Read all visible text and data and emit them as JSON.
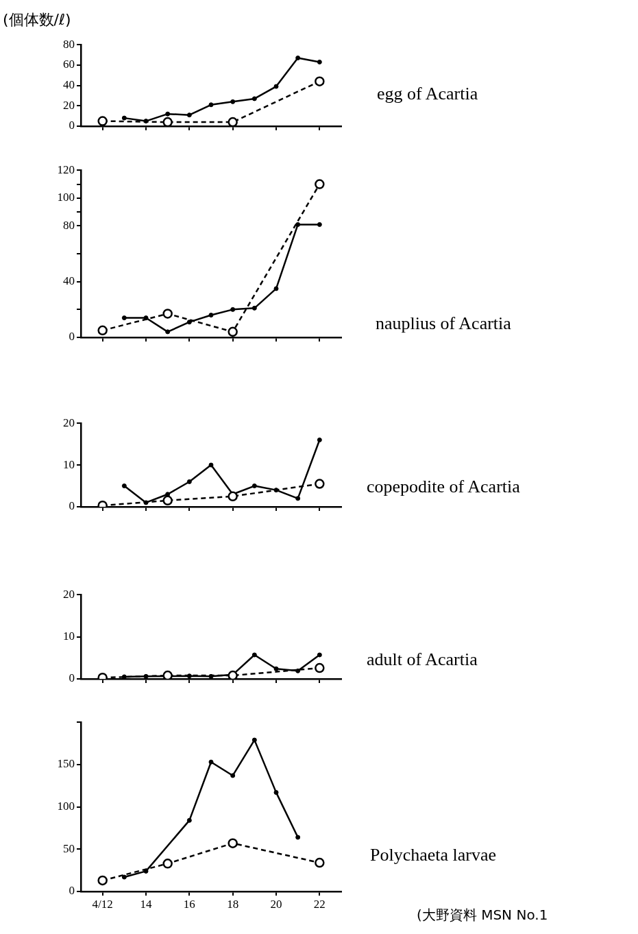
{
  "chart_data": [
    {
      "type": "line",
      "annotations": [
        "egg of Acartia"
      ],
      "ylabel": "(個体数/ℓ)",
      "marker": "circle",
      "grid": false,
      "legend": false,
      "tick_labels": "y",
      "xlim": [
        "--04-11",
        "--04-23"
      ],
      "xticks": [
        {
          "value": "--04-12",
          "label": null
        },
        {
          "value": "--04-14",
          "label": null
        },
        {
          "value": "--04-16",
          "label": null
        },
        {
          "value": "--04-18",
          "label": null
        },
        {
          "value": "--04-20",
          "label": null
        },
        {
          "value": "--04-22",
          "label": null
        }
      ],
      "ylim": [
        0,
        80
      ],
      "yticks": [
        0,
        20,
        40,
        60,
        80
      ],
      "series": [
        {
          "color": "#000000",
          "line_style": "solid",
          "x": [
            "--04-13",
            "--04-14",
            "--04-15",
            "--04-16",
            "--04-17",
            "--04-18",
            "--04-19",
            "--04-20",
            "--04-21",
            "--04-22"
          ],
          "values": [
            8,
            5,
            12,
            11,
            21,
            24,
            27,
            39,
            67,
            63
          ]
        },
        {
          "color": "#000000",
          "line_style": "dashed",
          "x": [
            "--04-12",
            "--04-15",
            "--04-18",
            "--04-22"
          ],
          "values": [
            5,
            4,
            4,
            44
          ]
        }
      ]
    },
    {
      "type": "line",
      "annotations": [
        "nauplius of Acartia"
      ],
      "marker": "circle",
      "grid": false,
      "legend": false,
      "tick_labels": "y",
      "xlim": [
        "--04-11",
        "--04-23"
      ],
      "xticks": [
        {
          "value": "--04-12",
          "label": null
        },
        {
          "value": "--04-14",
          "label": null
        },
        {
          "value": "--04-16",
          "label": null
        },
        {
          "value": "--04-18",
          "label": null
        },
        {
          "value": "--04-20",
          "label": null
        },
        {
          "value": "--04-22",
          "label": null
        }
      ],
      "ylim": [
        0,
        120
      ],
      "yticks": [
        0,
        {
          "value": 20,
          "label": null
        },
        40,
        {
          "value": 60,
          "label": null
        },
        80,
        {
          "value": 90,
          "label": null
        },
        100,
        {
          "value": 110,
          "label": null
        },
        120
      ],
      "series": [
        {
          "color": "#000000",
          "line_style": "solid",
          "x": [
            "--04-13",
            "--04-14",
            "--04-15",
            "--04-16",
            "--04-17",
            "--04-18",
            "--04-19",
            "--04-20",
            "--04-21",
            "--04-22"
          ],
          "values": [
            14,
            14,
            4,
            11,
            16,
            20,
            21,
            35,
            81,
            81
          ]
        },
        {
          "color": "#000000",
          "line_style": "dashed",
          "x": [
            "--04-12",
            "--04-15",
            "--04-18",
            "--04-22"
          ],
          "values": [
            5,
            17,
            4,
            110
          ]
        }
      ]
    },
    {
      "type": "line",
      "annotations": [
        "copepodite of Acartia"
      ],
      "marker": "circle",
      "grid": false,
      "legend": false,
      "tick_labels": "y",
      "xlim": [
        "--04-11",
        "--04-23"
      ],
      "xticks": [
        {
          "value": "--04-12",
          "label": null
        },
        {
          "value": "--04-14",
          "label": null
        },
        {
          "value": "--04-16",
          "label": null
        },
        {
          "value": "--04-18",
          "label": null
        },
        {
          "value": "--04-20",
          "label": null
        },
        {
          "value": "--04-22",
          "label": null
        }
      ],
      "ylim": [
        0,
        20
      ],
      "yticks": [
        0,
        10,
        20
      ],
      "series": [
        {
          "color": "#000000",
          "line_style": "solid",
          "x": [
            "--04-13",
            "--04-14",
            "--04-15",
            "--04-16",
            "--04-17",
            "--04-18",
            "--04-19",
            "--04-20",
            "--04-21",
            "--04-22"
          ],
          "values": [
            5,
            1,
            3,
            6,
            10,
            3,
            5,
            4,
            2,
            16
          ]
        },
        {
          "color": "#000000",
          "line_style": "dashed",
          "x": [
            "--04-12",
            "--04-15",
            "--04-18",
            "--04-22"
          ],
          "values": [
            0.3,
            1.5,
            2.5,
            5.5
          ]
        }
      ]
    },
    {
      "type": "line",
      "annotations": [
        "adult of Acartia"
      ],
      "marker": "circle",
      "grid": false,
      "legend": false,
      "tick_labels": "y",
      "xlim": [
        "--04-11",
        "--04-23"
      ],
      "xticks": [
        {
          "value": "--04-12",
          "label": null
        },
        {
          "value": "--04-14",
          "label": null
        },
        {
          "value": "--04-16",
          "label": null
        },
        {
          "value": "--04-18",
          "label": null
        },
        {
          "value": "--04-20",
          "label": null
        },
        {
          "value": "--04-22",
          "label": null
        }
      ],
      "ylim": [
        0,
        20
      ],
      "yticks": [
        0,
        10,
        20
      ],
      "series": [
        {
          "color": "#000000",
          "line_style": "solid",
          "x": [
            "--04-13",
            "--04-14",
            "--04-16",
            "--04-17",
            "--04-18",
            "--04-19",
            "--04-20",
            "--04-21",
            "--04-22"
          ],
          "values": [
            0.5,
            0.6,
            0.7,
            0.6,
            1,
            5.7,
            2.4,
            1.9,
            5.7
          ]
        },
        {
          "color": "#000000",
          "line_style": "dashed",
          "x": [
            "--04-12",
            "--04-15",
            "--04-18",
            "--04-22"
          ],
          "values": [
            0.3,
            0.8,
            0.8,
            2.6
          ]
        }
      ]
    },
    {
      "type": "line",
      "marker": "circle",
      "grid": false,
      "legend": false,
      "xlim": [
        "--04-11",
        "--04-23"
      ],
      "xticks": [
        {
          "value": "--04-12",
          "label": "4/12"
        },
        {
          "value": "--04-14",
          "label": "14"
        },
        {
          "value": "--04-16",
          "label": "16"
        },
        {
          "value": "--04-18",
          "label": "18"
        },
        {
          "value": "--04-20",
          "label": "20"
        },
        {
          "value": "--04-22",
          "label": "22"
        }
      ],
      "ylim": [
        0,
        200
      ],
      "yticks": [
        0,
        50,
        100,
        150,
        {
          "value": 200,
          "label": null
        }
      ],
      "annotations": [
        "Polychaeta larvae",
        "(大野資料 MSN No.1"
      ],
      "series": [
        {
          "color": "#000000",
          "line_style": "solid",
          "x": [
            "--04-13",
            "--04-14",
            "--04-16",
            "--04-17",
            "--04-18",
            "--04-19",
            "--04-20",
            "--04-21"
          ],
          "values": [
            17,
            24,
            84,
            153,
            137,
            179,
            117,
            64
          ]
        },
        {
          "color": "#000000",
          "line_style": "dashed",
          "x": [
            "--04-12",
            "--04-15",
            "--04-18",
            "--04-22"
          ],
          "values": [
            13,
            33,
            57,
            34
          ]
        }
      ]
    }
  ]
}
